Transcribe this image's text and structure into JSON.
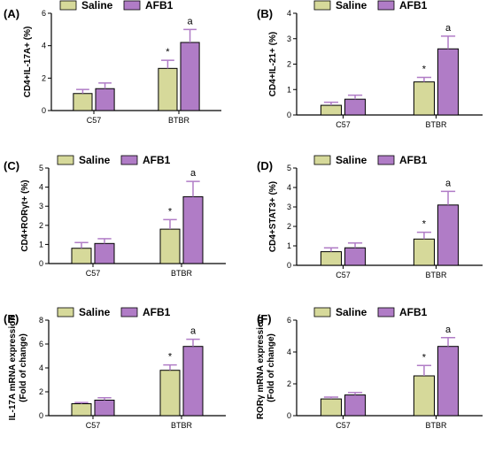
{
  "colors": {
    "saline": "#d6d99a",
    "afb1": "#b07cc6",
    "axis": "#000000",
    "error": "#b07cc6"
  },
  "legend": {
    "saline": "Saline",
    "afb1": "AFB1"
  },
  "chart_data": [
    {
      "panel": "(A)",
      "type": "bar",
      "ylabel": "CD4+IL-17A+ (%)",
      "categories": [
        "C57",
        "BTBR"
      ],
      "ylim": [
        0,
        6
      ],
      "yticks": [
        0,
        2,
        4,
        6
      ],
      "series": [
        {
          "name": "Saline",
          "values": [
            1.05,
            2.6
          ],
          "errors": [
            0.25,
            0.5
          ]
        },
        {
          "name": "AFB1",
          "values": [
            1.35,
            4.2
          ],
          "errors": [
            0.35,
            0.8
          ]
        }
      ],
      "annotations": [
        {
          "series": 0,
          "category": 1,
          "text": "*"
        },
        {
          "series": 1,
          "category": 1,
          "text": "a"
        }
      ]
    },
    {
      "panel": "(B)",
      "type": "bar",
      "ylabel": "CD4+IL-21+ (%)",
      "categories": [
        "C57",
        "BTBR"
      ],
      "ylim": [
        0,
        4
      ],
      "yticks": [
        0,
        1,
        2,
        3,
        4
      ],
      "series": [
        {
          "name": "Saline",
          "values": [
            0.38,
            1.3
          ],
          "errors": [
            0.12,
            0.18
          ]
        },
        {
          "name": "AFB1",
          "values": [
            0.62,
            2.6
          ],
          "errors": [
            0.16,
            0.5
          ]
        }
      ],
      "annotations": [
        {
          "series": 0,
          "category": 1,
          "text": "*"
        },
        {
          "series": 1,
          "category": 1,
          "text": "a"
        }
      ]
    },
    {
      "panel": "(C)",
      "type": "bar",
      "ylabel": "CD4+RORγt+ (%)",
      "categories": [
        "C57",
        "BTBR"
      ],
      "ylim": [
        0,
        5
      ],
      "yticks": [
        0,
        1,
        2,
        3,
        4,
        5
      ],
      "series": [
        {
          "name": "Saline",
          "values": [
            0.8,
            1.8
          ],
          "errors": [
            0.3,
            0.5
          ]
        },
        {
          "name": "AFB1",
          "values": [
            1.05,
            3.5
          ],
          "errors": [
            0.25,
            0.8
          ]
        }
      ],
      "annotations": [
        {
          "series": 0,
          "category": 1,
          "text": "*"
        },
        {
          "series": 1,
          "category": 1,
          "text": "a"
        }
      ]
    },
    {
      "panel": "(D)",
      "type": "bar",
      "ylabel": "CD4+STAT3+ (%)",
      "categories": [
        "C57",
        "BTBR"
      ],
      "ylim": [
        0,
        5
      ],
      "yticks": [
        0,
        1,
        2,
        3,
        4,
        5
      ],
      "series": [
        {
          "name": "Saline",
          "values": [
            0.7,
            1.35
          ],
          "errors": [
            0.2,
            0.35
          ]
        },
        {
          "name": "AFB1",
          "values": [
            0.9,
            3.1
          ],
          "errors": [
            0.25,
            0.7
          ]
        }
      ],
      "annotations": [
        {
          "series": 0,
          "category": 1,
          "text": "*"
        },
        {
          "series": 1,
          "category": 1,
          "text": "a"
        }
      ]
    },
    {
      "panel": "(E)",
      "type": "bar",
      "ylabel": "IL-17A mRNA expression (Fold of change)",
      "ylabel_lines": [
        "IL-17A mRNA expression",
        "(Fold of change)"
      ],
      "categories": [
        "C57",
        "BTBR"
      ],
      "ylim": [
        0,
        8
      ],
      "yticks": [
        0,
        2,
        4,
        6,
        8
      ],
      "series": [
        {
          "name": "Saline",
          "values": [
            1.0,
            3.8
          ],
          "errors": [
            0.1,
            0.45
          ]
        },
        {
          "name": "AFB1",
          "values": [
            1.3,
            5.8
          ],
          "errors": [
            0.2,
            0.6
          ]
        }
      ],
      "annotations": [
        {
          "series": 0,
          "category": 1,
          "text": "*"
        },
        {
          "series": 1,
          "category": 1,
          "text": "a"
        }
      ]
    },
    {
      "panel": "(F)",
      "type": "bar",
      "ylabel": "RORγ mRNA expression (Fold of change)",
      "ylabel_lines": [
        "RORγ mRNA expression",
        "(Fold of change)"
      ],
      "categories": [
        "C57",
        "BTBR"
      ],
      "ylim": [
        0,
        6
      ],
      "yticks": [
        0,
        2,
        4,
        6
      ],
      "series": [
        {
          "name": "Saline",
          "values": [
            1.05,
            2.5
          ],
          "errors": [
            0.12,
            0.65
          ]
        },
        {
          "name": "AFB1",
          "values": [
            1.3,
            4.35
          ],
          "errors": [
            0.15,
            0.55
          ]
        }
      ],
      "annotations": [
        {
          "series": 0,
          "category": 1,
          "text": "*"
        },
        {
          "series": 1,
          "category": 1,
          "text": "a"
        }
      ]
    }
  ]
}
